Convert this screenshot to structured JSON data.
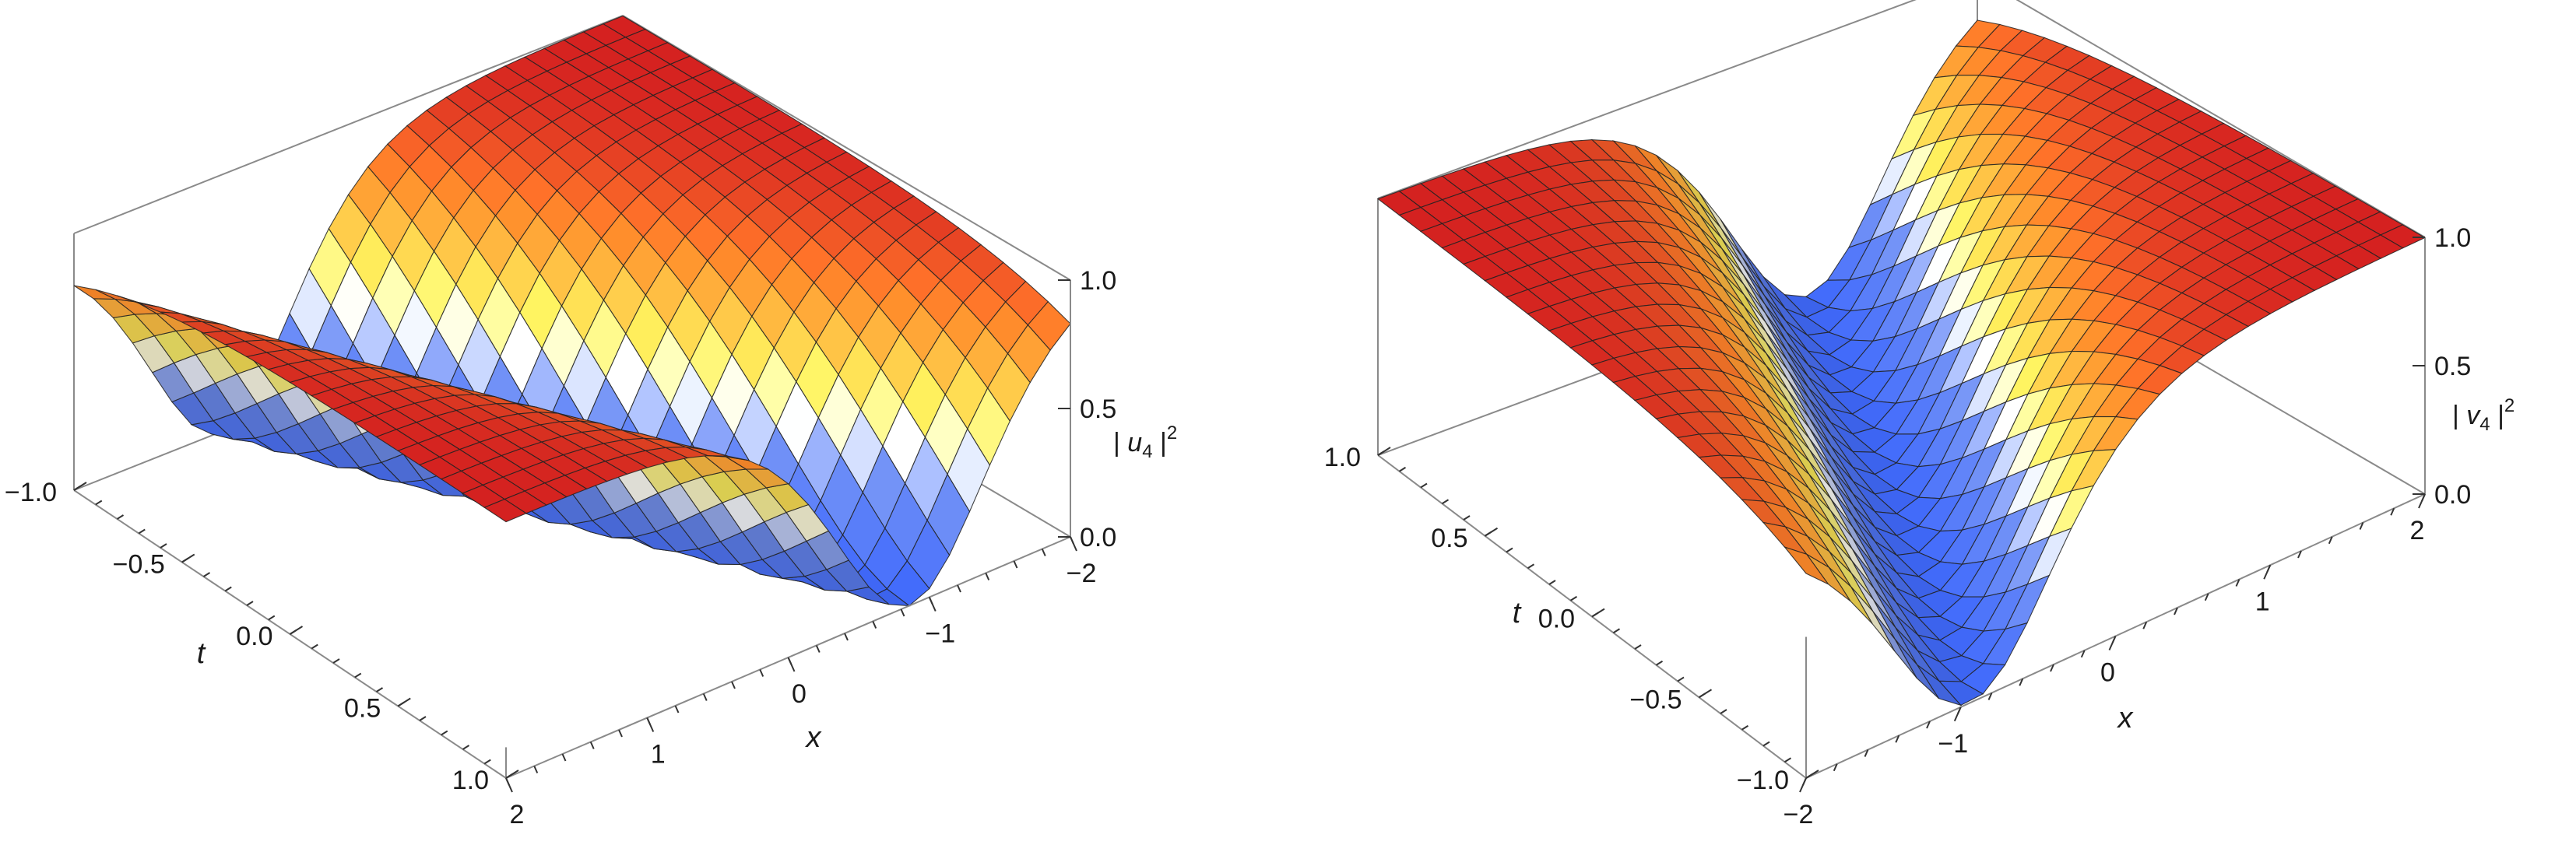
{
  "chart_data": [
    {
      "type": "surface3d",
      "title": "",
      "zlabel": "|u4|²",
      "zlabel_parts": {
        "left": "| ",
        "var": "u",
        "sub": "4",
        "right": " |",
        "sup": "2"
      },
      "xlabel": "x",
      "ylabel": "t",
      "x_range": [
        -2,
        2
      ],
      "t_range": [
        -1,
        1
      ],
      "z_range": [
        0,
        1
      ],
      "x_ticks": [
        "2",
        "1",
        "0",
        "−1",
        "−2"
      ],
      "x_tick_values": [
        2,
        1,
        0,
        -1,
        -2
      ],
      "t_ticks": [
        "−1.0",
        "−0.5",
        "0.0",
        "0.5",
        "1.0"
      ],
      "t_tick_values": [
        -1,
        -0.5,
        0,
        0.5,
        1
      ],
      "z_ticks": [
        "0.0",
        "0.5",
        "1.0"
      ],
      "z_tick_values": [
        0,
        0.5,
        1
      ],
      "surface": "dark-soliton |u4|^2 = 1 - sech^2(x + t)",
      "colormap": [
        "#d42020",
        "#ff8a2a",
        "#f6e85a",
        "#ffffff",
        "#3a62f0"
      ]
    },
    {
      "type": "surface3d",
      "title": "",
      "zlabel": "|v4|²",
      "zlabel_parts": {
        "left": "| ",
        "var": "v",
        "sub": "4",
        "right": " |",
        "sup": "2"
      },
      "xlabel": "x",
      "ylabel": "t",
      "x_range": [
        -2,
        2
      ],
      "t_range": [
        -1,
        1
      ],
      "z_range": [
        0,
        1
      ],
      "x_ticks": [
        "−2",
        "−1",
        "0",
        "1",
        "2"
      ],
      "x_tick_values": [
        -2,
        -1,
        0,
        1,
        2
      ],
      "t_ticks": [
        "−1.0",
        "−0.5",
        "0.0",
        "0.5",
        "1.0"
      ],
      "t_tick_values": [
        -1,
        -0.5,
        0,
        0.5,
        1
      ],
      "z_ticks": [
        "0.0",
        "0.5",
        "1.0"
      ],
      "z_tick_values": [
        0,
        0.5,
        1
      ],
      "surface": "dark-soliton |v4|^2 = 1 - sech^2(x - t)",
      "colormap": [
        "#d42020",
        "#ff8a2a",
        "#f6e85a",
        "#ffffff",
        "#3a62f0"
      ]
    }
  ]
}
